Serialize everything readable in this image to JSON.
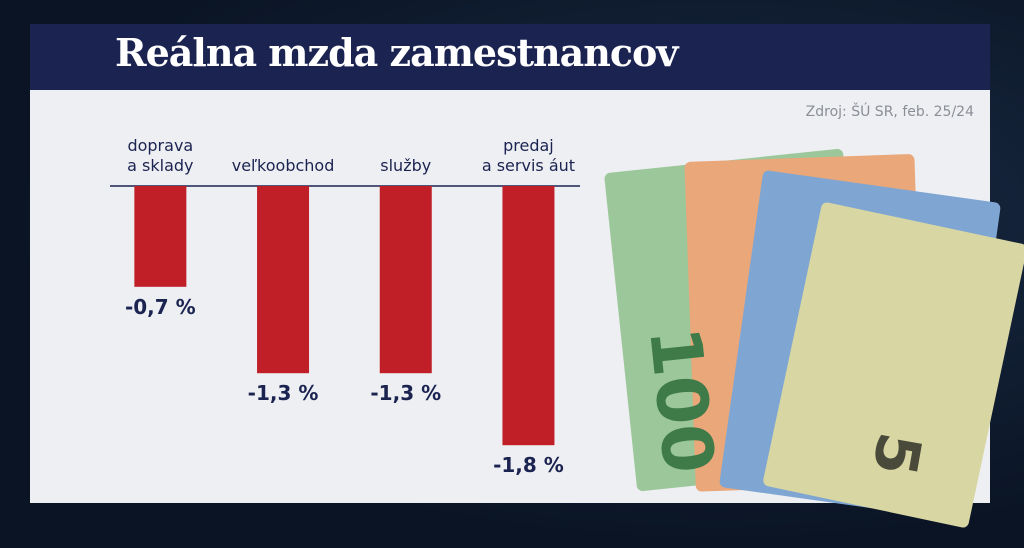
{
  "chart_data": {
    "type": "bar",
    "title": "Reálna mzda zamestnancov",
    "source": "Zdroj: ŠÚ SR, feb. 25/24",
    "categories": [
      "doprava\na sklady",
      "veľkoobchod",
      "služby",
      "predaj\na servis áut"
    ],
    "values": [
      -0.7,
      -1.3,
      -1.3,
      -1.8
    ],
    "value_labels": [
      "-0,7 %",
      "-1,3 %",
      "-1,3 %",
      "-1,8 %"
    ],
    "color": "#c01f28"
  }
}
